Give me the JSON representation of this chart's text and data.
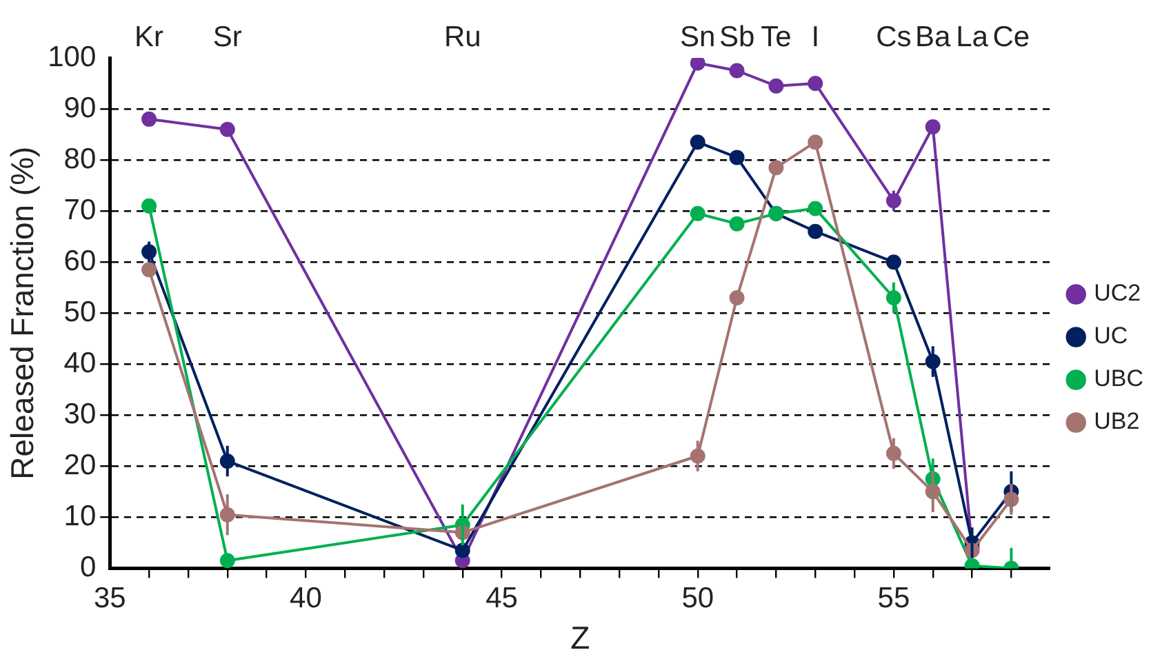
{
  "chart_data": {
    "type": "line",
    "xlabel": "Z",
    "ylabel": "Released Franction (%)",
    "x": [
      36,
      38,
      44,
      50,
      51,
      52,
      53,
      55,
      56,
      57,
      58
    ],
    "xlim": [
      35,
      59
    ],
    "xticks": [
      35,
      {
        "value": 36,
        "label": null
      },
      {
        "value": 37,
        "label": null
      },
      {
        "value": 38,
        "label": null
      },
      {
        "value": 39,
        "label": null
      },
      40,
      {
        "value": 41,
        "label": null
      },
      {
        "value": 42,
        "label": null
      },
      {
        "value": 43,
        "label": null
      },
      {
        "value": 44,
        "label": null
      },
      45,
      {
        "value": 46,
        "label": null
      },
      {
        "value": 47,
        "label": null
      },
      {
        "value": 48,
        "label": null
      },
      {
        "value": 49,
        "label": null
      },
      50,
      {
        "value": 51,
        "label": null
      },
      {
        "value": 52,
        "label": null
      },
      {
        "value": 53,
        "label": null
      },
      {
        "value": 54,
        "label": null
      },
      55,
      {
        "value": 56,
        "label": null
      },
      {
        "value": 57,
        "label": null
      },
      {
        "value": 58,
        "label": null
      }
    ],
    "ylim": [
      0,
      100
    ],
    "yticks": [
      0,
      10,
      20,
      30,
      40,
      50,
      60,
      70,
      80,
      90,
      100
    ],
    "grid": "y",
    "legend": "right",
    "marker": "circle",
    "line_style": "solid",
    "series": [
      {
        "name": "UC2",
        "color": "#7030a0",
        "values": [
          88,
          86,
          1.5,
          99,
          97.5,
          94.5,
          95,
          72,
          86.5,
          4,
          null
        ],
        "errors": [
          null,
          null,
          null,
          null,
          null,
          null,
          null,
          2,
          null,
          null,
          null
        ]
      },
      {
        "name": "UC",
        "color": "#002060",
        "values": [
          62,
          21,
          3.5,
          83.5,
          80.5,
          69.5,
          66,
          60,
          40.5,
          5,
          15
        ],
        "errors": [
          2,
          3,
          null,
          null,
          null,
          null,
          null,
          null,
          3,
          3,
          4
        ]
      },
      {
        "name": "UBC",
        "color": "#00b050",
        "values": [
          71,
          1.5,
          8.5,
          69.5,
          67.5,
          69.5,
          70.5,
          53,
          17.5,
          0.5,
          0
        ],
        "errors": [
          null,
          null,
          4,
          null,
          null,
          null,
          null,
          3,
          4,
          null,
          [
            0,
            4
          ]
        ]
      },
      {
        "name": "UB2",
        "color": "#a57370",
        "values": [
          58.5,
          10.5,
          7,
          22,
          53,
          78.5,
          83.5,
          22.5,
          15,
          3.5,
          13.5
        ],
        "errors": [
          null,
          4,
          null,
          3,
          null,
          null,
          null,
          3,
          4,
          null,
          3
        ]
      }
    ],
    "annotations": [
      "Kr",
      "Sr",
      "Ru",
      "Sn",
      "Sb",
      "Te",
      "I",
      "Cs",
      "Ba",
      "La",
      "Ce"
    ]
  }
}
